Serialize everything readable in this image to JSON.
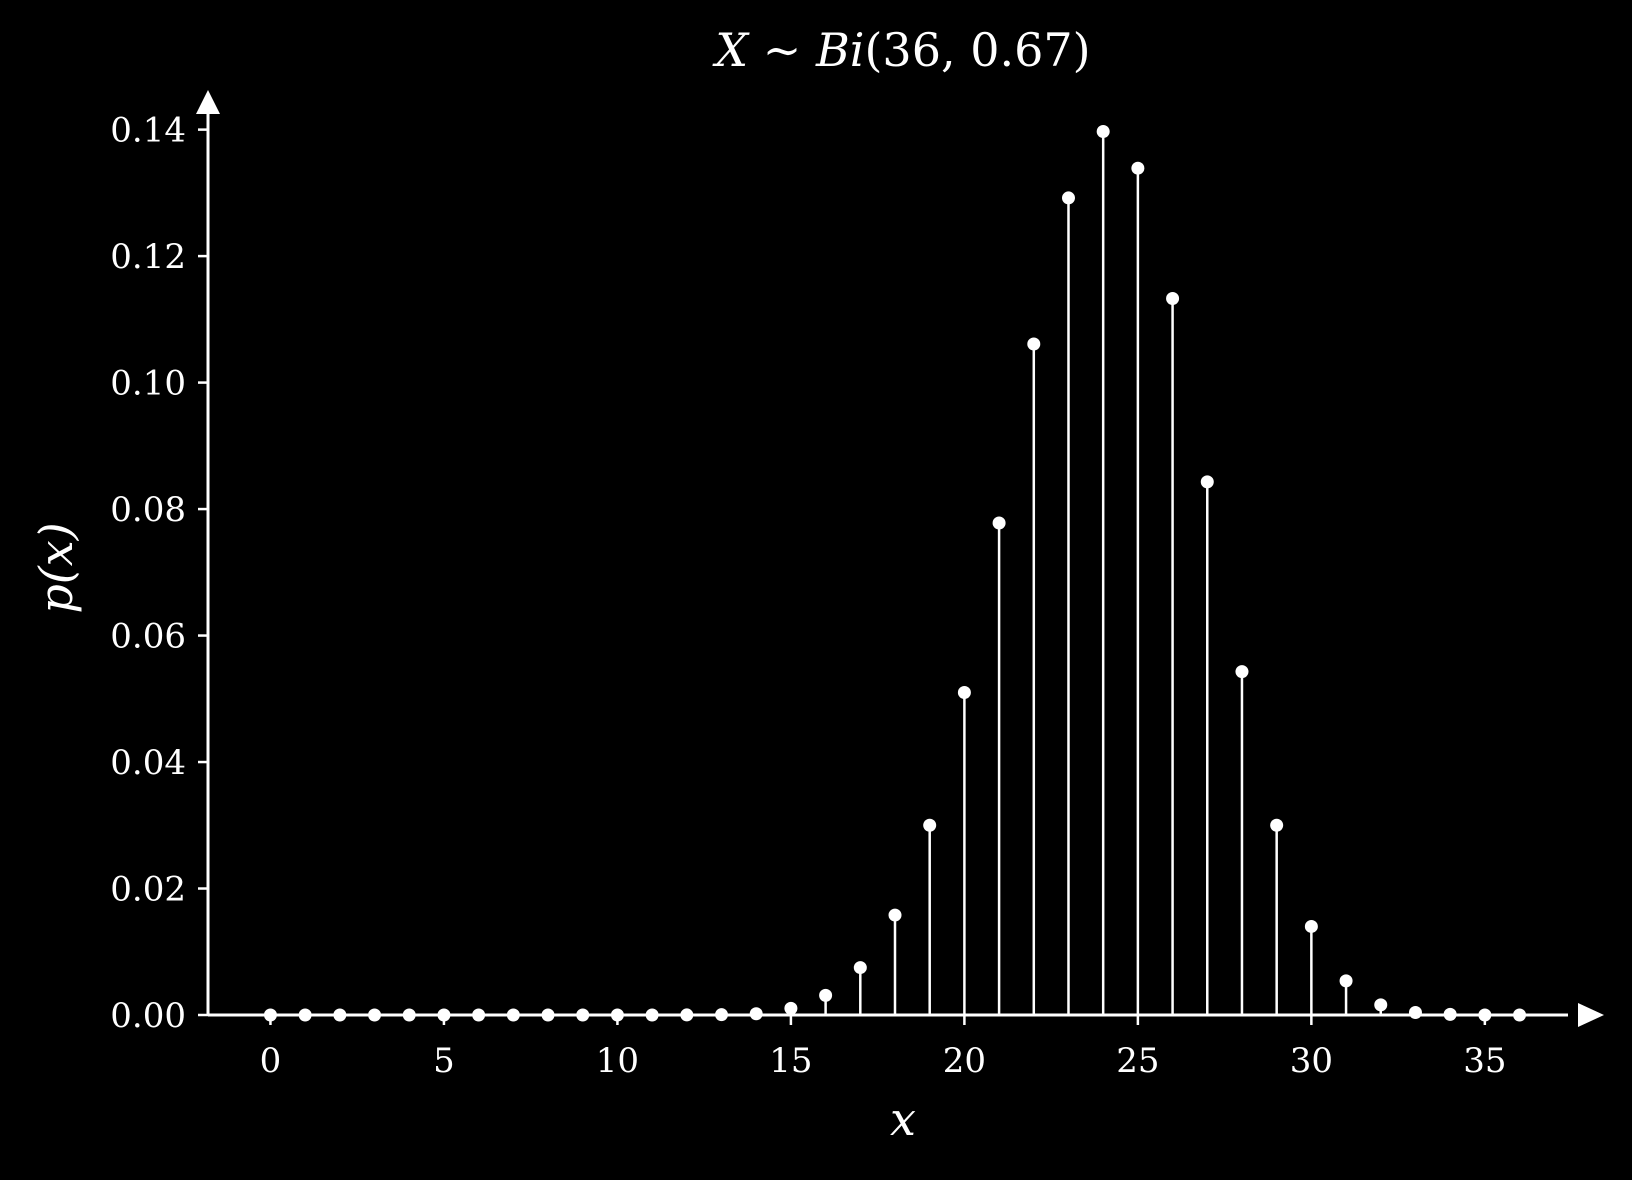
{
  "chart_data": {
    "type": "stem",
    "title_parts": {
      "var": "X",
      "rel": " ∼ ",
      "dist": "Bi",
      "params": "(36, 0.67)"
    },
    "xlabel": "x",
    "ylabel": "p(x)",
    "xlim": [
      -1.8,
      37.8
    ],
    "ylim": [
      0,
      0.145
    ],
    "xticks": [
      0,
      5,
      10,
      15,
      20,
      25,
      30,
      35
    ],
    "yticks": [
      0.0,
      0.02,
      0.04,
      0.06,
      0.08,
      0.1,
      0.12,
      0.14
    ],
    "ytick_decimals": 2,
    "x": [
      0,
      1,
      2,
      3,
      4,
      5,
      6,
      7,
      8,
      9,
      10,
      11,
      12,
      13,
      14,
      15,
      16,
      17,
      18,
      19,
      20,
      21,
      22,
      23,
      24,
      25,
      26,
      27,
      28,
      29,
      30,
      31,
      32,
      33,
      34,
      35,
      36
    ],
    "values": [
      0,
      0,
      0,
      0,
      0,
      0,
      0,
      0,
      0,
      0,
      0,
      0,
      1e-05,
      5e-05,
      0.0002,
      0.00105,
      0.0031,
      0.0075,
      0.0158,
      0.03,
      0.051,
      0.0778,
      0.1061,
      0.1292,
      0.1397,
      0.1339,
      0.1133,
      0.0843,
      0.0543,
      0.03,
      0.014,
      0.0054,
      0.0016,
      0.0004,
      0.0001,
      0,
      0
    ],
    "colors": {
      "background": "#000000",
      "foreground": "#ffffff"
    }
  }
}
